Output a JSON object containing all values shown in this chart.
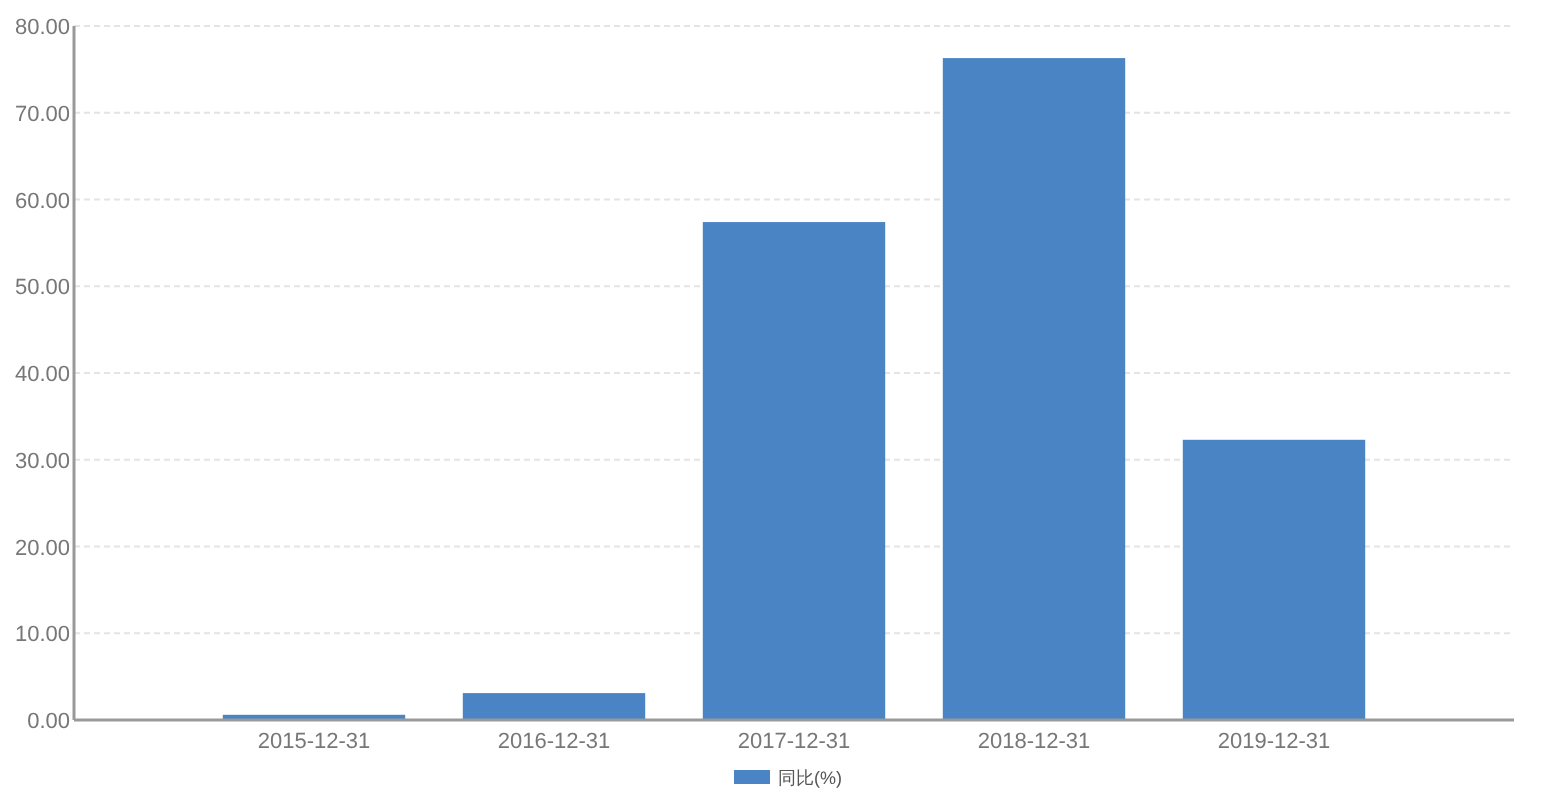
{
  "chart_data": {
    "type": "bar",
    "categories": [
      "2015-12-31",
      "2016-12-31",
      "2017-12-31",
      "2018-12-31",
      "2019-12-31"
    ],
    "series": [
      {
        "name": "同比(%)",
        "color": "#4a84c4",
        "values": [
          0.6,
          3.1,
          57.4,
          76.3,
          32.3
        ]
      }
    ],
    "ylim": [
      0,
      80
    ],
    "yticks": [
      {
        "value": 0,
        "label": "0.00"
      },
      {
        "value": 10,
        "label": "10.00"
      },
      {
        "value": 20,
        "label": "20.00"
      },
      {
        "value": 30,
        "label": "30.00"
      },
      {
        "value": 40,
        "label": "40.00"
      },
      {
        "value": 50,
        "label": "50.00"
      },
      {
        "value": 60,
        "label": "60.00"
      },
      {
        "value": 70,
        "label": "70.00"
      },
      {
        "value": 80,
        "label": "80.00"
      }
    ],
    "grid": "y",
    "legend": "bottom"
  }
}
